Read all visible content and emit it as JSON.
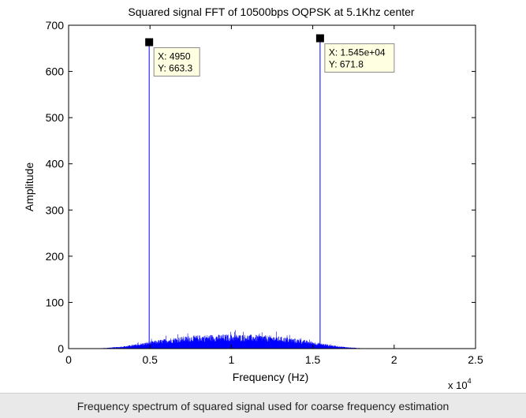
{
  "chart_data": {
    "type": "line",
    "title": "Squared signal FFT of 10500bps OQPSK at 5.1Khz center",
    "xlabel": "Frequency (Hz)",
    "ylabel": "Amplitude",
    "x_exponent_label": "x 10",
    "x_exponent": "4",
    "xlim": [
      0,
      25000
    ],
    "ylim": [
      0,
      700
    ],
    "x_ticks": [
      0,
      5000,
      10000,
      15000,
      20000,
      25000
    ],
    "x_tick_labels": [
      "0",
      "0.5",
      "1",
      "1.5",
      "2",
      "2.5"
    ],
    "y_ticks": [
      0,
      100,
      200,
      300,
      400,
      500,
      600,
      700
    ],
    "y_tick_labels": [
      "0",
      "100",
      "200",
      "300",
      "400",
      "500",
      "600",
      "700"
    ],
    "grid": false,
    "line_color": "#0000ff",
    "noise_floor": {
      "x_start": 0,
      "x_end": 24000,
      "peak_level_at_center": 28,
      "center": 10000
    },
    "peaks": [
      {
        "x": 4950,
        "y": 663.3
      },
      {
        "x": 15450,
        "y": 671.8
      }
    ],
    "datatips": [
      {
        "x_label": "X: 4950",
        "y_label": "Y: 663.3",
        "x": 4950,
        "y": 663.3
      },
      {
        "x_label": "X: 1.545e+04",
        "y_label": "Y: 671.8",
        "x": 15450,
        "y": 671.8
      }
    ]
  },
  "caption": "Frequency spectrum of squared signal used for coarse frequency estimation"
}
